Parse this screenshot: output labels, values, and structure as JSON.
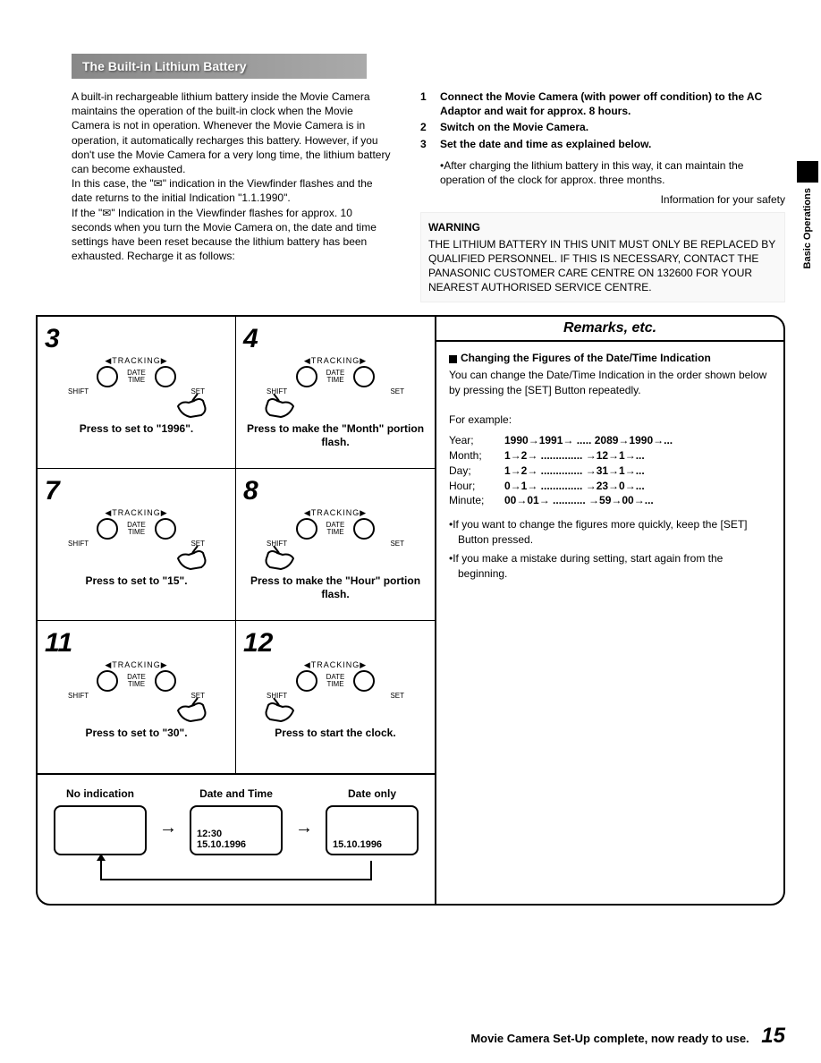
{
  "header": {
    "title": "The Built-in Lithium Battery"
  },
  "sideTab": {
    "label": "Basic Operations"
  },
  "leftText": {
    "p1": "A built-in rechargeable lithium battery inside the Movie Camera maintains the operation of the built-in clock when the Movie Camera is not in operation. Whenever the Movie Camera is in operation, it automatically recharges this battery. However, if you don't use the Movie Camera for a very long time, the lithium battery can become exhausted.",
    "p2": "In this case, the \"✉\" indication in the Viewfinder flashes and the date returns to the initial Indication \"1.1.1990\".",
    "p3": "If the \"✉\" Indication in the Viewfinder flashes for approx. 10 seconds when you turn the Movie Camera on, the date and time settings have been reset because the lithium battery has been exhausted. Recharge it as follows:"
  },
  "rightList": {
    "items": [
      {
        "n": "1",
        "t": "Connect the Movie Camera (with power off condition) to the AC Adaptor and wait for approx. 8 hours."
      },
      {
        "n": "2",
        "t": "Switch on the Movie Camera."
      },
      {
        "n": "3",
        "t": "Set the date and time as explained below."
      }
    ],
    "sub": "•After charging the lithium battery in this way, it can maintain the operation of the clock for approx. three months.",
    "safety": "Information for your safety",
    "warningTitle": "WARNING",
    "warningBody": "THE LITHIUM BATTERY IN THIS UNIT MUST ONLY BE REPLACED BY QUALIFIED PERSONNEL. IF THIS IS NECESSARY, CONTACT THE PANASONIC CUSTOMER CARE CENTRE ON 132600 FOR YOUR NEAREST AUTHORISED SERVICE CENTRE."
  },
  "remarks": {
    "heading": "Remarks, etc.",
    "title": "Changing the Figures of the Date/Time Indication",
    "intro": "You can change the Date/Time Indication in the order shown below by pressing the [SET] Button repeatedly.",
    "example": "For example:",
    "rows": [
      {
        "label": "Year;",
        "seq": "1990→1991→ ..... 2089→1990→..."
      },
      {
        "label": "Month;",
        "seq": "1→2→ .............. →12→1→..."
      },
      {
        "label": "Day;",
        "seq": "1→2→ .............. →31→1→..."
      },
      {
        "label": "Hour;",
        "seq": "0→1→ .............. →23→0→..."
      },
      {
        "label": "Minute;",
        "seq": "00→01→ ........... →59→00→..."
      }
    ],
    "b1": "•If you want to change the figures more quickly, keep the [SET] Button pressed.",
    "b2": "•If you make a mistake during setting, start again from the beginning."
  },
  "diagram": {
    "tracking": "◀TRACKING▶",
    "date": "DATE",
    "time": "TIME",
    "shift": "SHIFT",
    "set": "SET"
  },
  "steps": [
    {
      "n": "3",
      "caption": "Press to set to \"1996\".",
      "hand": "right"
    },
    {
      "n": "4",
      "caption": "Press to make the \"Month\" portion flash.",
      "hand": "left"
    },
    {
      "n": "7",
      "caption": "Press to set to \"15\".",
      "hand": "right"
    },
    {
      "n": "8",
      "caption": "Press to make the \"Hour\" portion flash.",
      "hand": "left"
    },
    {
      "n": "11",
      "caption": "Press to set to \"30\".",
      "hand": "right"
    },
    {
      "n": "12",
      "caption": "Press to start the clock.",
      "hand": "left"
    }
  ],
  "cycle": {
    "c1": {
      "title": "No indication",
      "l1": "",
      "l2": ""
    },
    "c2": {
      "title": "Date and Time",
      "l1": "12:30",
      "l2": "15.10.1996"
    },
    "c3": {
      "title": "Date only",
      "l1": "",
      "l2": "15.10.1996"
    }
  },
  "footer": {
    "text": "Movie Camera Set-Up complete, now ready to use.",
    "page": "15"
  }
}
